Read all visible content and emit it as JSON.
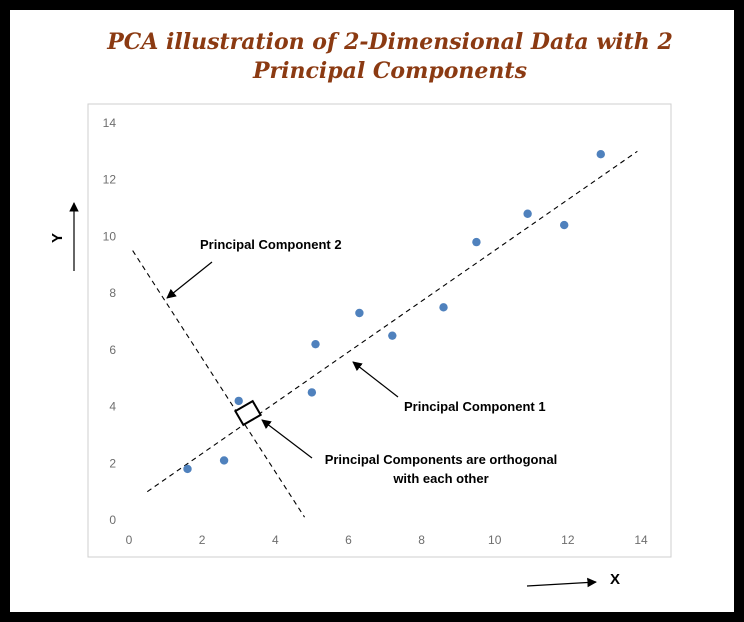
{
  "title_line1": "PCA illustration of 2-Dimensional Data with 2",
  "title_line2": "Principal Components",
  "colors": {
    "title": "#8b3a12",
    "points": "#4f81bd",
    "frame": "#000000"
  },
  "chart_data": {
    "type": "scatter",
    "title": "PCA illustration of 2-Dimensional Data with 2 Principal Components",
    "xlabel": "X",
    "ylabel": "Y",
    "xlim": [
      0,
      14
    ],
    "ylim": [
      0,
      14
    ],
    "xticks": [
      0,
      2,
      4,
      6,
      8,
      10,
      12,
      14
    ],
    "yticks": [
      0,
      2,
      4,
      6,
      8,
      10,
      12,
      14
    ],
    "grid": false,
    "points": [
      {
        "x": 1.6,
        "y": 1.8
      },
      {
        "x": 2.6,
        "y": 2.1
      },
      {
        "x": 3.0,
        "y": 4.2
      },
      {
        "x": 5.0,
        "y": 4.5
      },
      {
        "x": 5.1,
        "y": 6.2
      },
      {
        "x": 6.3,
        "y": 7.3
      },
      {
        "x": 7.2,
        "y": 6.5
      },
      {
        "x": 8.6,
        "y": 7.5
      },
      {
        "x": 9.5,
        "y": 9.8
      },
      {
        "x": 10.9,
        "y": 10.8
      },
      {
        "x": 11.9,
        "y": 10.4
      },
      {
        "x": 12.9,
        "y": 12.9
      }
    ],
    "lines": [
      {
        "name": "Principal Component 1",
        "from": {
          "x": 0.5,
          "y": 1.0
        },
        "to": {
          "x": 13.9,
          "y": 13.0
        }
      },
      {
        "name": "Principal Component 2",
        "from": {
          "x": 0.1,
          "y": 9.5
        },
        "to": {
          "x": 4.8,
          "y": 0.1
        }
      }
    ],
    "annotations": [
      "Principal Component 2",
      "Principal Component 1",
      "Principal Components are orthogonal",
      "with each other"
    ]
  }
}
